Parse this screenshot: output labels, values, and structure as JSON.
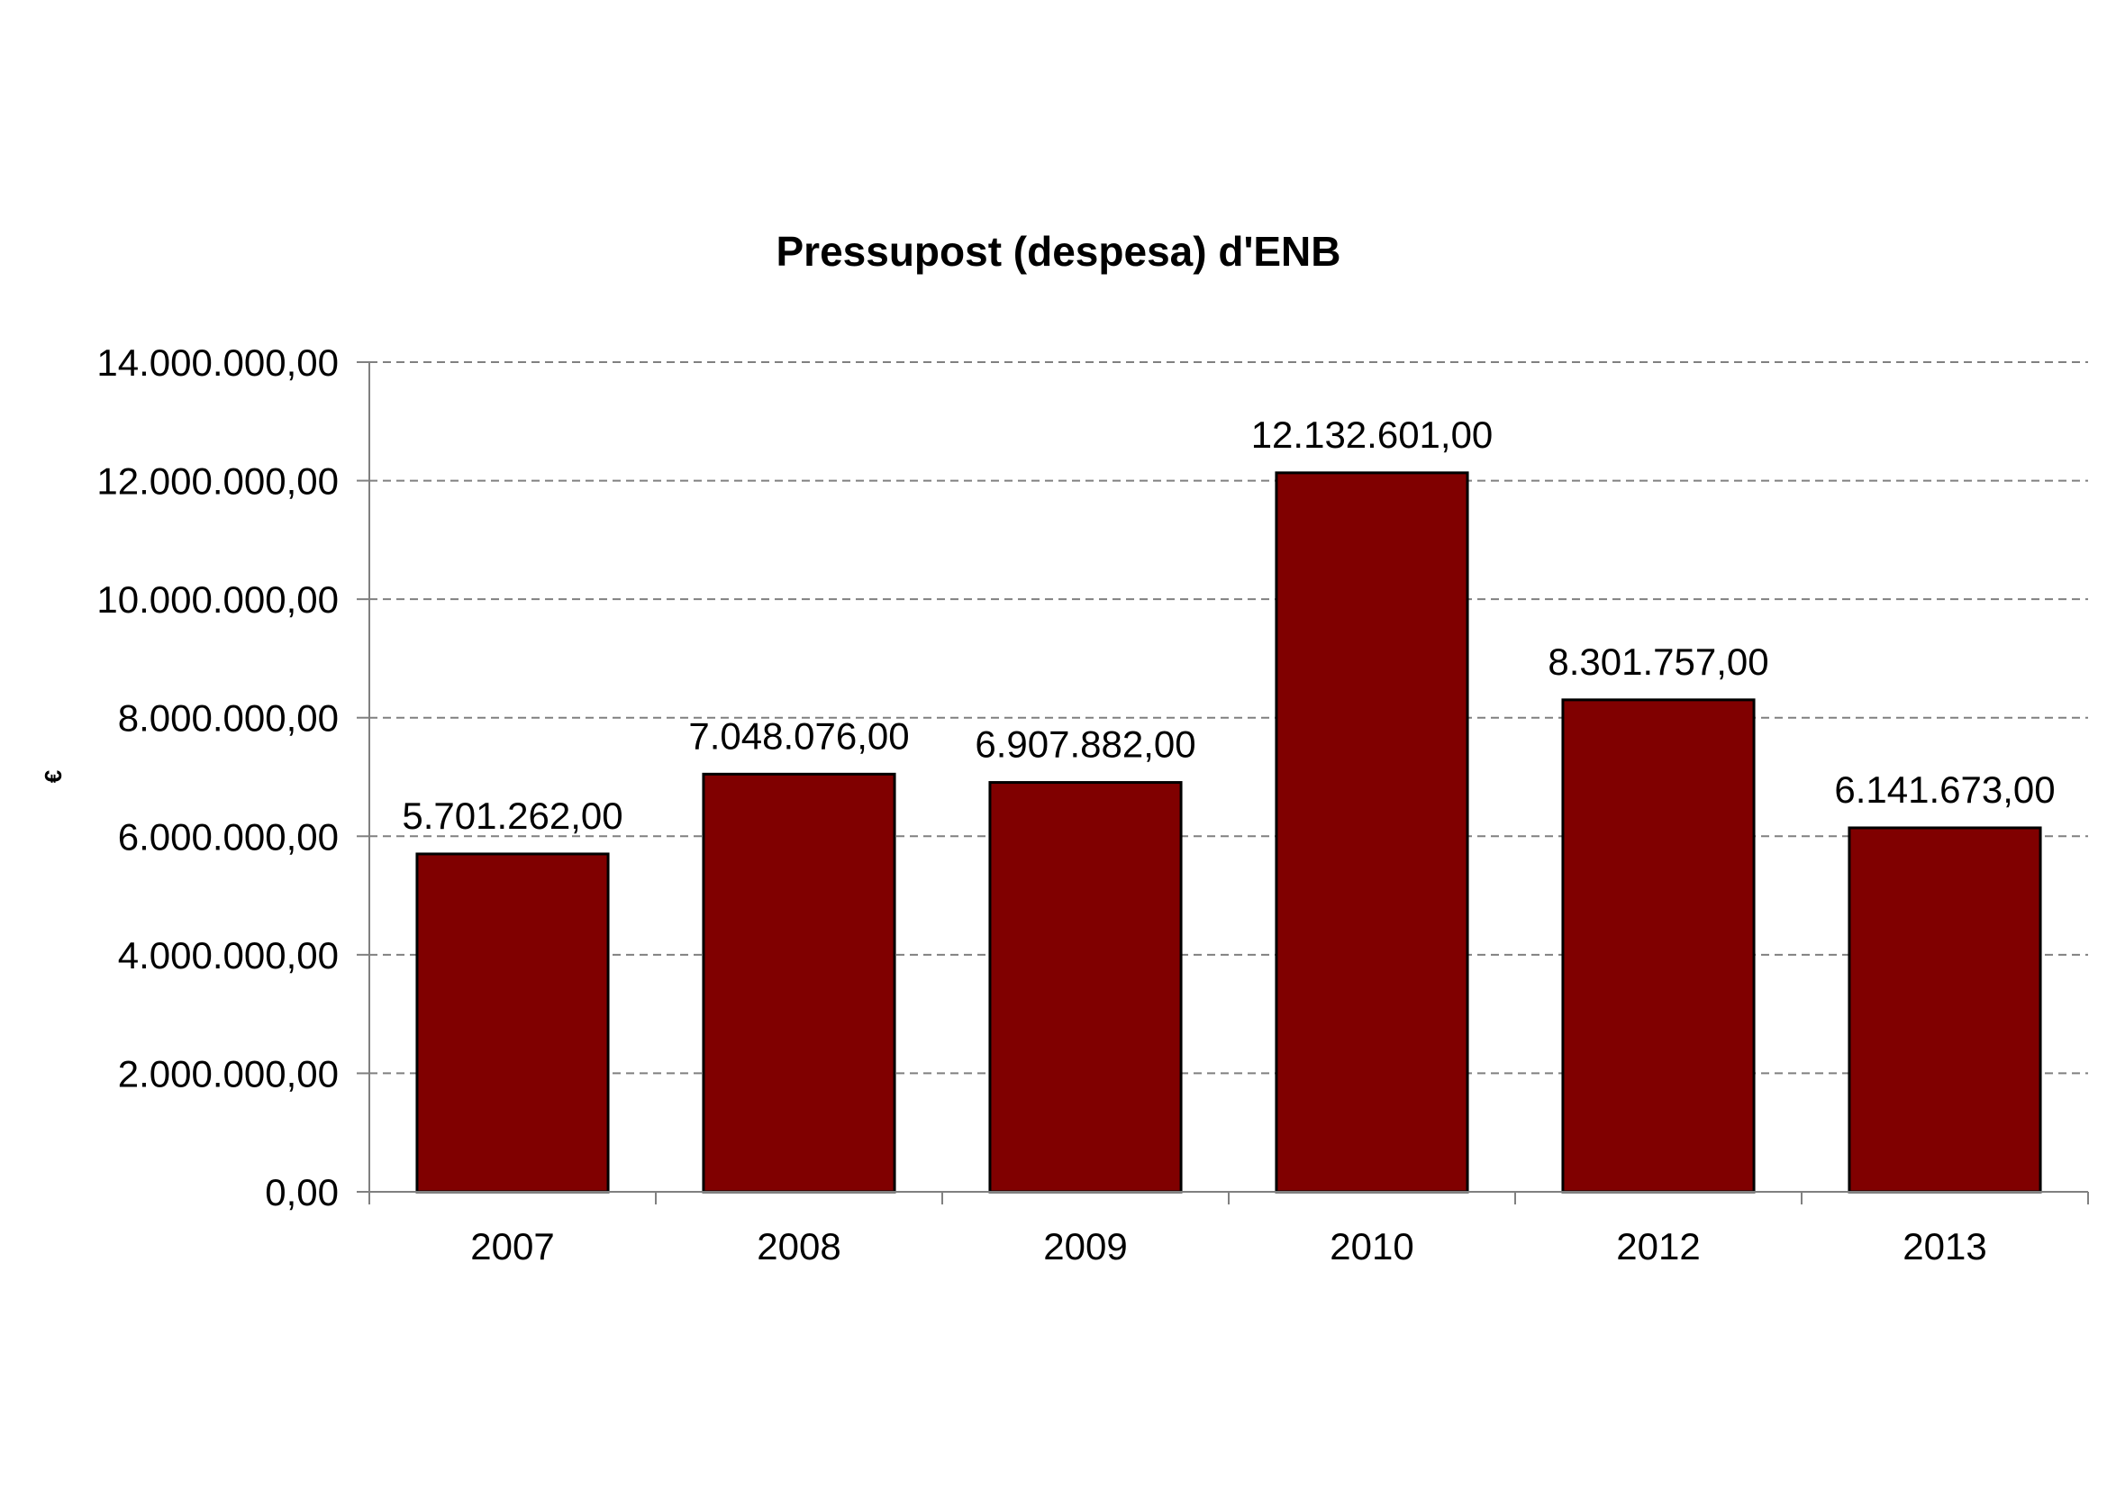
{
  "chart_data": {
    "type": "bar",
    "title": "Pressupost (despesa) d'ENB",
    "xlabel": "",
    "ylabel": "€",
    "categories": [
      "2007",
      "2008",
      "2009",
      "2010",
      "2012",
      "2013"
    ],
    "values": [
      5701262,
      7048076,
      6907882,
      12132601,
      8301757,
      6141673
    ],
    "data_labels": [
      "5.701.262,00",
      "7.048.076,00",
      "6.907.882,00",
      "12.132.601,00",
      "8.301.757,00",
      "6.141.673,00"
    ],
    "ylim": [
      0,
      14000000
    ],
    "yticks": [
      0,
      2000000,
      4000000,
      6000000,
      8000000,
      10000000,
      12000000,
      14000000
    ],
    "ytick_labels": [
      "0,00",
      "2.000.000,00",
      "4.000.000,00",
      "6.000.000,00",
      "8.000.000,00",
      "10.000.000,00",
      "12.000.000,00",
      "14.000.000,00"
    ],
    "grid": true,
    "legend": "none",
    "colors": {
      "bar_fill": "#800000",
      "bar_stroke": "#000000",
      "grid": "#808080",
      "axis": "#808080",
      "background": "#ffffff"
    }
  }
}
